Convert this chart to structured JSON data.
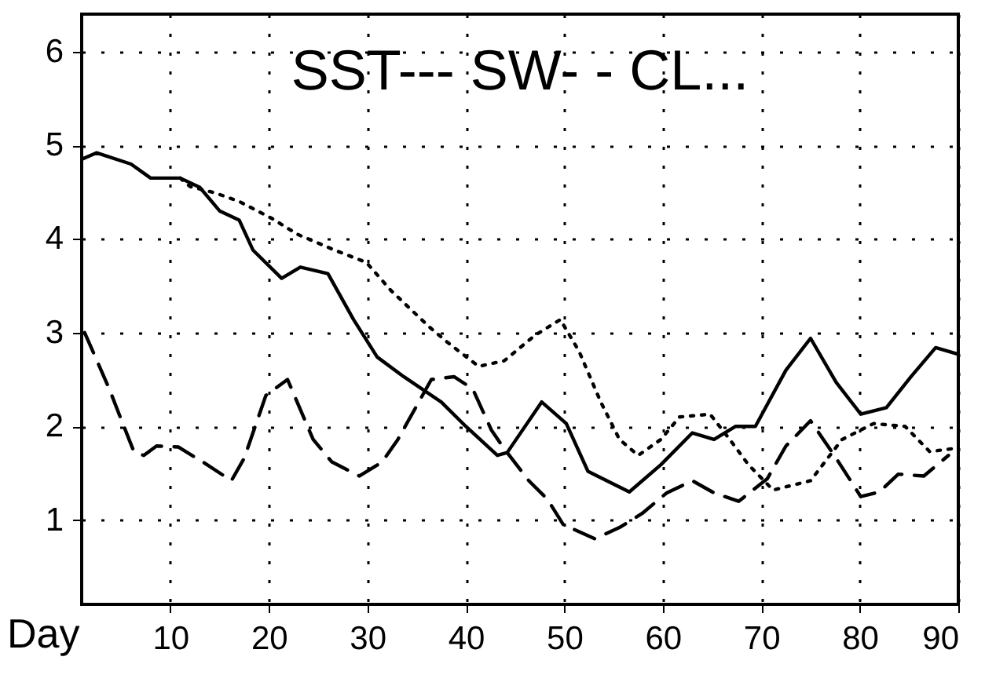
{
  "chart_data": {
    "type": "line",
    "xlabel": "Day",
    "xlim": [
      1,
      90
    ],
    "ylim": [
      0.1,
      6.4
    ],
    "xticks": [
      10,
      20,
      30,
      40,
      50,
      60,
      70,
      80,
      90
    ],
    "yticks": [
      1,
      2,
      3,
      4,
      5,
      6
    ],
    "grid": true,
    "annotations": [
      "SST---  SW-  -  CL..."
    ],
    "series": [
      {
        "color": "#000000",
        "line_style": "solid",
        "x": [
          1,
          2.5,
          6,
          8,
          11,
          13,
          15,
          17,
          18.4,
          21.3,
          23.2,
          26,
          28.6,
          31,
          33.7,
          37.5,
          40,
          43.2,
          44.2,
          47.7,
          50.2,
          52.4,
          56.6,
          59.8,
          63,
          65.2,
          67.4,
          69.4,
          72.5,
          75,
          77.6,
          80.1,
          82.7,
          85.2,
          87.7,
          90
        ],
        "values": [
          4.85,
          4.92,
          4.8,
          4.65,
          4.65,
          4.55,
          4.3,
          4.2,
          3.88,
          3.58,
          3.7,
          3.63,
          3.14,
          2.74,
          2.53,
          2.26,
          2.0,
          1.69,
          1.72,
          2.26,
          2.03,
          1.52,
          1.3,
          1.59,
          1.93,
          1.86,
          2.0,
          2.0,
          2.6,
          2.94,
          2.47,
          2.13,
          2.2,
          2.53,
          2.84,
          2.77
        ]
      },
      {
        "color": "#000000",
        "line_style": "dashed",
        "x": [
          1.3,
          3.8,
          4.8,
          6.3,
          7.3,
          8.6,
          10.8,
          13.3,
          16.2,
          17.5,
          19.7,
          21.9,
          24.5,
          26.4,
          29.2,
          31.5,
          33.1,
          36.5,
          38.8,
          40.7,
          42.6,
          43.9,
          46.4,
          48.3,
          49.9,
          53.1,
          55.6,
          57.9,
          60.4,
          63,
          65.2,
          67.7,
          70.6,
          72.5,
          75,
          77.6,
          80.1,
          82,
          83.9,
          86.5,
          89
        ],
        "values": [
          3.0,
          2.4,
          2.13,
          1.73,
          1.69,
          1.79,
          1.78,
          1.62,
          1.42,
          1.66,
          2.33,
          2.5,
          1.86,
          1.62,
          1.47,
          1.62,
          1.86,
          2.5,
          2.53,
          2.4,
          1.96,
          1.76,
          1.42,
          1.22,
          0.95,
          0.8,
          0.92,
          1.07,
          1.29,
          1.42,
          1.29,
          1.2,
          1.44,
          1.79,
          2.06,
          1.66,
          1.25,
          1.3,
          1.49,
          1.47,
          1.69
        ]
      },
      {
        "color": "#000000",
        "line_style": "dotted",
        "x": [
          11,
          12,
          14.6,
          17,
          20.3,
          22.9,
          26.7,
          29.9,
          32.4,
          36.2,
          38.1,
          41.3,
          43.9,
          47,
          49.6,
          51.5,
          53.7,
          55.6,
          57.5,
          59.8,
          61.7,
          64.8,
          66.8,
          68.7,
          71.2,
          75,
          78.2,
          81.4,
          84.6,
          87.1,
          89.3
        ],
        "values": [
          4.65,
          4.56,
          4.49,
          4.4,
          4.22,
          4.05,
          3.88,
          3.75,
          3.45,
          3.07,
          2.9,
          2.64,
          2.7,
          2.97,
          3.14,
          2.8,
          2.26,
          1.86,
          1.69,
          1.86,
          2.1,
          2.13,
          1.86,
          1.59,
          1.32,
          1.42,
          1.86,
          2.03,
          2.0,
          1.73,
          1.76
        ]
      }
    ]
  }
}
